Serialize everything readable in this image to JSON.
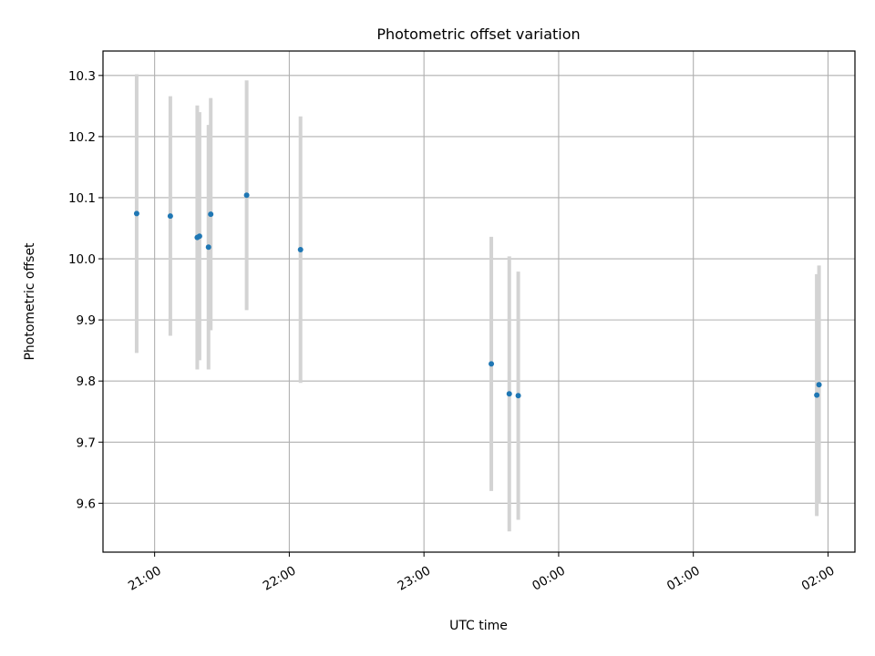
{
  "chart_data": {
    "type": "scatter",
    "title": "Photometric offset variation",
    "xlabel": "UTC time",
    "ylabel": "Photometric offset",
    "x_tick_labels": [
      "21:00",
      "22:00",
      "23:00",
      "00:00",
      "01:00",
      "02:00"
    ],
    "x_tick_hours": [
      21,
      22,
      23,
      24,
      25,
      26
    ],
    "y_ticks": [
      9.6,
      9.7,
      9.8,
      9.9,
      10.0,
      10.1,
      10.2,
      10.3
    ],
    "y_tick_labels": [
      "9.6",
      "9.7",
      "9.8",
      "9.9",
      "10.0",
      "10.1",
      "10.2",
      "10.3"
    ],
    "xlim": [
      "20:37",
      "02:12"
    ],
    "ylim": [
      9.52,
      10.34
    ],
    "grid": true,
    "colors": {
      "point": "#1f77b4",
      "errorbar": "#d3d3d3",
      "grid": "#b0b0b0"
    },
    "points": [
      {
        "x": "20:52",
        "y": 10.074,
        "err": 0.228
      },
      {
        "x": "21:07",
        "y": 10.07,
        "err": 0.196
      },
      {
        "x": "21:19",
        "y": 10.035,
        "err": 0.216
      },
      {
        "x": "21:20",
        "y": 10.037,
        "err": 0.203
      },
      {
        "x": "21:24",
        "y": 10.019,
        "err": 0.2
      },
      {
        "x": "21:25",
        "y": 10.073,
        "err": 0.19
      },
      {
        "x": "21:41",
        "y": 10.104,
        "err": 0.188
      },
      {
        "x": "22:05",
        "y": 10.015,
        "err": 0.218
      },
      {
        "x": "23:30",
        "y": 9.828,
        "err": 0.208
      },
      {
        "x": "23:38",
        "y": 9.779,
        "err": 0.225
      },
      {
        "x": "23:42",
        "y": 9.776,
        "err": 0.203
      },
      {
        "x": "01:55",
        "y": 9.777,
        "err": 0.198
      },
      {
        "x": "01:56",
        "y": 9.794,
        "err": 0.195
      }
    ]
  }
}
